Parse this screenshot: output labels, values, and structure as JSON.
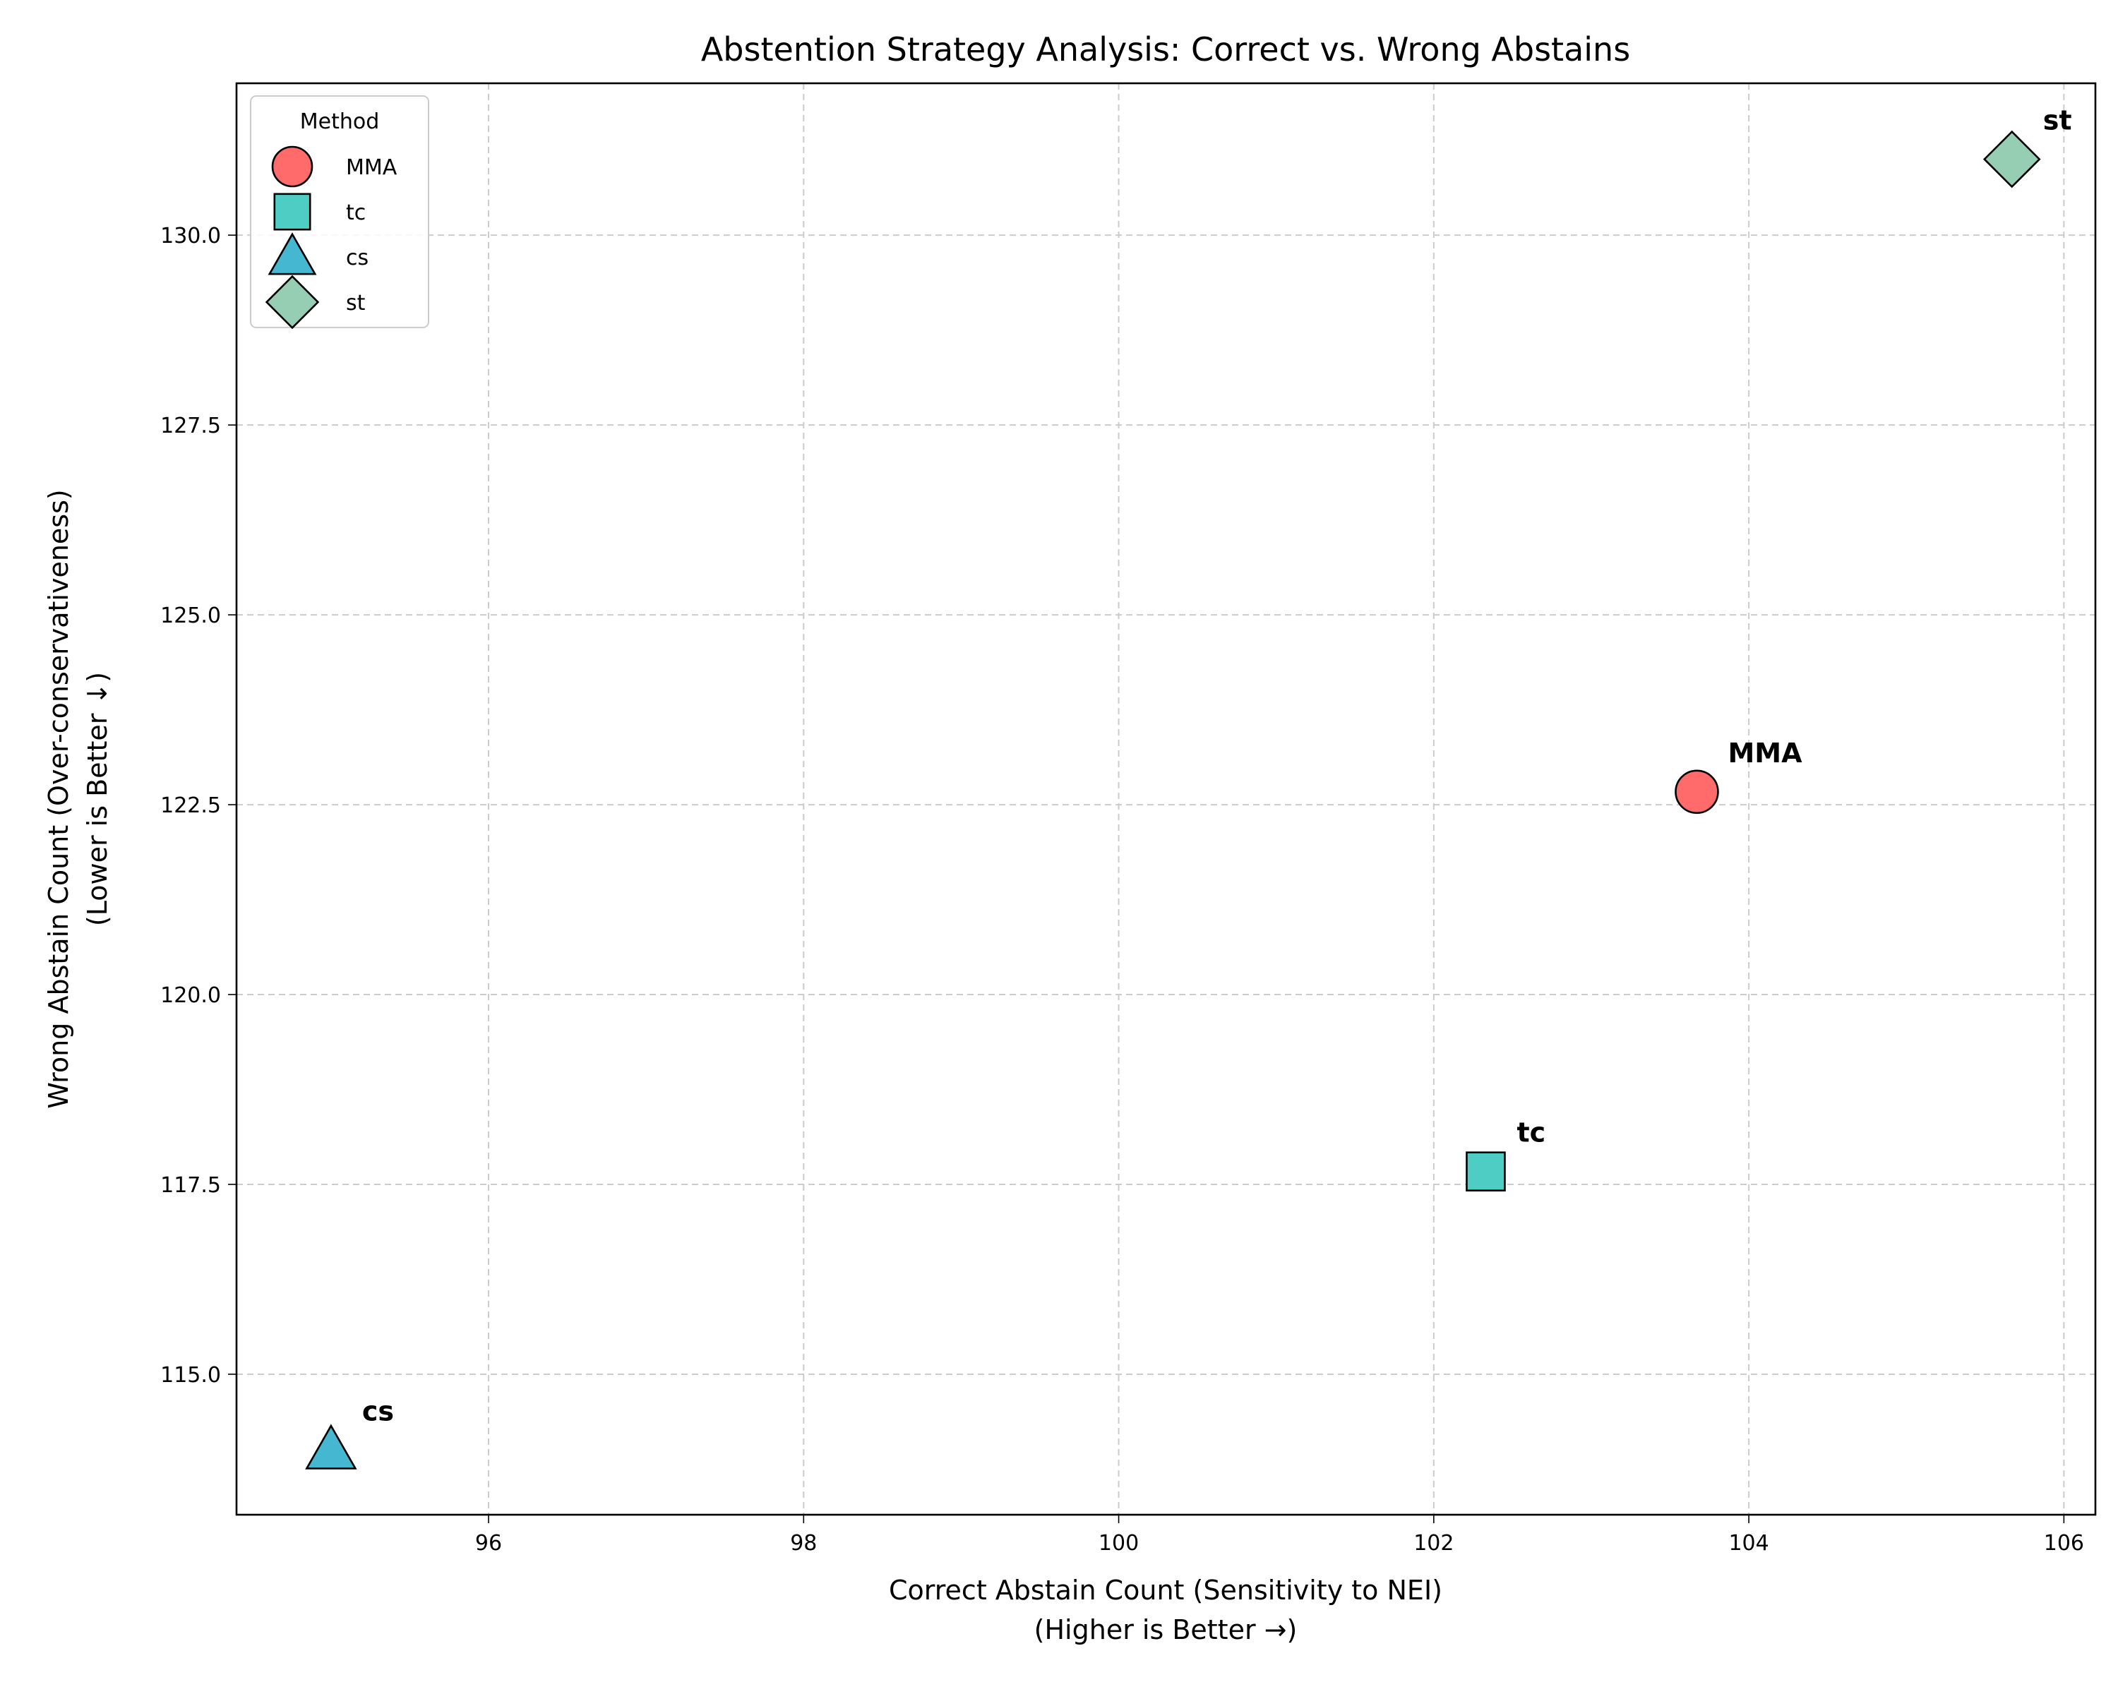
{
  "chart_data": {
    "type": "scatter",
    "title": "Abstention Strategy Analysis: Correct vs. Wrong Abstains",
    "xlabel_line1": "Correct Abstain Count (Sensitivity to NEI)",
    "xlabel_line2": "(Higher is Better →)",
    "ylabel_line1": "Wrong Abstain Count (Over-conservativeness)",
    "ylabel_line2": "(Lower is Better ↓)",
    "xlim": [
      94.4,
      106.2
    ],
    "ylim": [
      113.15,
      132.0
    ],
    "xticks": [
      96,
      98,
      100,
      102,
      104,
      106
    ],
    "xtick_labels": [
      "96",
      "98",
      "100",
      "102",
      "104",
      "106"
    ],
    "yticks": [
      115.0,
      117.5,
      120.0,
      122.5,
      125.0,
      127.5,
      130.0
    ],
    "ytick_labels": [
      "115.0",
      "117.5",
      "120.0",
      "122.5",
      "125.0",
      "127.5",
      "130.0"
    ],
    "grid": true,
    "legend_title": "Method",
    "legend_position": "top-left",
    "points": [
      {
        "label": "MMA",
        "x": 103.67,
        "y": 122.67,
        "marker": "circle",
        "color": "#ff6b6b"
      },
      {
        "label": "tc",
        "x": 102.33,
        "y": 117.67,
        "marker": "square",
        "color": "#4ecdc4"
      },
      {
        "label": "cs",
        "x": 95.0,
        "y": 114.0,
        "marker": "triangle",
        "color": "#45b7d1"
      },
      {
        "label": "st",
        "x": 105.67,
        "y": 131.0,
        "marker": "diamond",
        "color": "#96ceb4"
      }
    ]
  }
}
